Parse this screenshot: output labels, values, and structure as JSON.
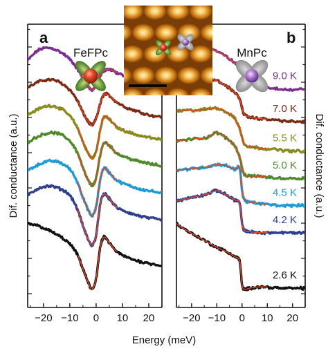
{
  "chart_data": [
    {
      "type": "line",
      "panel_letter": "a",
      "molecule_label": "FeFPc",
      "xlabel": "Energy (meV)",
      "ylabel": "Dif. conductance (a.u.)",
      "y_axis_side": "left",
      "xlim": [
        -26,
        25
      ],
      "x_ticks": [
        -20,
        -10,
        0,
        10,
        20
      ],
      "x_tick_labels": [
        "−20",
        "−10",
        "0",
        "10",
        "20"
      ],
      "y_tick_labels_shown": false,
      "fit_line_color": "#d9482a",
      "fit_x_range": [
        -7,
        8
      ],
      "series": [
        {
          "temperature": "9.0 K",
          "color": "#7b2f8f",
          "x": [
            -26,
            -22,
            -18,
            -14,
            -10,
            -7,
            -5,
            -3,
            -1.5,
            0,
            1.5,
            3,
            5,
            8,
            12,
            16,
            20,
            25
          ],
          "y": [
            7.3,
            7.75,
            7.85,
            7.7,
            7.35,
            6.9,
            6.5,
            6.15,
            6.0,
            6.2,
            6.6,
            6.85,
            6.9,
            6.75,
            6.5,
            6.3,
            6.15,
            6.05
          ]
        },
        {
          "temperature": "7.0 K",
          "color": "#7a2a14",
          "x": [
            -26,
            -22,
            -18,
            -14,
            -10,
            -7,
            -5,
            -3,
            -1.5,
            0,
            1.5,
            3,
            5,
            8,
            12,
            16,
            20,
            25
          ],
          "y": [
            6.1,
            6.35,
            6.45,
            6.35,
            6.0,
            5.5,
            5.0,
            4.6,
            4.45,
            4.75,
            5.35,
            5.8,
            5.75,
            5.45,
            5.2,
            5.05,
            4.9,
            4.8
          ]
        },
        {
          "temperature": "5.5 K",
          "color": "#8a8a1e",
          "x": [
            -26,
            -22,
            -18,
            -14,
            -10,
            -7,
            -5,
            -3,
            -1.5,
            0,
            1.5,
            3,
            5,
            8,
            12,
            16,
            20,
            25
          ],
          "y": [
            4.9,
            5.15,
            5.3,
            5.2,
            4.85,
            4.3,
            3.7,
            3.2,
            3.0,
            3.3,
            4.2,
            4.8,
            4.7,
            4.35,
            4.15,
            4.0,
            3.9,
            3.8
          ]
        },
        {
          "temperature": "5.0 K",
          "color": "#4f8a2a",
          "x": [
            -26,
            -22,
            -18,
            -14,
            -10,
            -7,
            -5,
            -3,
            -1.5,
            0,
            1.5,
            3,
            5,
            8,
            12,
            16,
            20,
            25
          ],
          "y": [
            3.7,
            3.95,
            4.1,
            4.05,
            3.75,
            3.2,
            2.55,
            2.0,
            1.8,
            2.1,
            3.1,
            3.65,
            3.55,
            3.2,
            3.0,
            2.85,
            2.75,
            2.65
          ]
        },
        {
          "temperature": "4.5 K",
          "color": "#1e9ad6",
          "x": [
            -26,
            -22,
            -18,
            -14,
            -10,
            -7,
            -5,
            -3,
            -1.5,
            0,
            1.5,
            3,
            5,
            8,
            12,
            16,
            20,
            25
          ],
          "y": [
            2.45,
            2.7,
            2.85,
            2.8,
            2.5,
            1.9,
            1.25,
            0.7,
            0.45,
            0.85,
            2.0,
            2.55,
            2.35,
            2.0,
            1.8,
            1.65,
            1.55,
            1.45
          ]
        },
        {
          "temperature": "4.2 K",
          "color": "#2f3f8f",
          "x": [
            -26,
            -22,
            -18,
            -14,
            -10,
            -7,
            -5,
            -3,
            -1.5,
            0,
            1.5,
            3,
            5,
            8,
            12,
            16,
            20,
            25
          ],
          "y": [
            1.35,
            1.65,
            1.75,
            1.65,
            1.35,
            0.7,
            0.0,
            -0.6,
            -0.85,
            -0.4,
            0.9,
            1.4,
            1.2,
            0.8,
            0.6,
            0.45,
            0.35,
            0.25
          ]
        },
        {
          "temperature": "2.6 K",
          "color": "#111111",
          "x": [
            -26,
            -22,
            -18,
            -14,
            -10,
            -7,
            -5,
            -3,
            -1.5,
            0,
            1.5,
            3,
            5,
            8,
            12,
            16,
            20,
            25
          ],
          "y": [
            0.1,
            0.0,
            -0.2,
            -0.45,
            -0.8,
            -1.3,
            -1.9,
            -2.5,
            -2.8,
            -2.3,
            -1.0,
            -0.5,
            -0.75,
            -1.15,
            -1.4,
            -1.55,
            -1.65,
            -1.75
          ]
        }
      ]
    },
    {
      "type": "line",
      "panel_letter": "b",
      "molecule_label": "MnPc",
      "xlabel": "Energy (meV)",
      "ylabel": "Dif. conductance (a.u.)",
      "y_axis_side": "right",
      "xlim": [
        -26,
        25
      ],
      "x_ticks": [
        -20,
        -10,
        0,
        10,
        20
      ],
      "x_tick_labels": [
        "−20",
        "−10",
        "0",
        "10",
        "20"
      ],
      "y_tick_labels_shown": false,
      "fit_line_color": "#d9482a",
      "fit_x_range": [
        -26,
        10
      ],
      "series": [
        {
          "temperature": "9.0 K",
          "color": "#7b2f8f",
          "x": [
            -26,
            -22,
            -18,
            -14,
            -10,
            -6,
            -3,
            -1,
            0,
            1,
            3,
            6,
            10,
            15,
            20,
            25
          ],
          "y": [
            7.6,
            7.75,
            7.85,
            7.9,
            7.7,
            7.45,
            7.2,
            7.05,
            6.8,
            6.45,
            6.3,
            6.2,
            6.1,
            6.05,
            6.0,
            6.05
          ]
        },
        {
          "temperature": "7.0 K",
          "color": "#7a2a14",
          "x": [
            -26,
            -22,
            -18,
            -14,
            -10,
            -6,
            -3,
            -1,
            0,
            1,
            3,
            6,
            10,
            15,
            20,
            25
          ],
          "y": [
            6.35,
            6.4,
            6.45,
            6.5,
            6.4,
            6.15,
            5.9,
            5.6,
            5.2,
            4.9,
            4.8,
            4.75,
            4.7,
            4.65,
            4.6,
            4.6
          ]
        },
        {
          "temperature": "5.5 K",
          "color": "#8a8a1e",
          "x": [
            -26,
            -22,
            -18,
            -14,
            -10,
            -6,
            -3,
            -1,
            0,
            1,
            3,
            6,
            10,
            15,
            20,
            25
          ],
          "y": [
            5.05,
            5.1,
            5.1,
            5.15,
            5.2,
            5.0,
            4.75,
            4.3,
            3.9,
            3.6,
            3.5,
            3.45,
            3.4,
            3.35,
            3.3,
            3.3
          ]
        },
        {
          "temperature": "5.0 K",
          "color": "#4f8a2a",
          "x": [
            -26,
            -22,
            -18,
            -14,
            -10,
            -6,
            -3,
            -1,
            0,
            1,
            3,
            6,
            10,
            15,
            20,
            25
          ],
          "y": [
            3.75,
            3.8,
            3.85,
            3.9,
            4.1,
            3.85,
            3.55,
            3.05,
            2.55,
            2.25,
            2.2,
            2.2,
            2.15,
            2.1,
            2.1,
            2.1
          ]
        },
        {
          "temperature": "4.5 K",
          "color": "#1e9ad6",
          "x": [
            -26,
            -22,
            -18,
            -14,
            -10,
            -6,
            -3,
            -1,
            0,
            1,
            3,
            6,
            10,
            15,
            20,
            25
          ],
          "y": [
            2.45,
            2.5,
            2.55,
            2.6,
            2.7,
            2.65,
            2.5,
            2.55,
            1.55,
            1.15,
            1.05,
            1.0,
            0.95,
            0.9,
            0.9,
            0.9
          ]
        },
        {
          "temperature": "4.2 K",
          "color": "#2f3f8f",
          "x": [
            -26,
            -22,
            -18,
            -14,
            -10,
            -6,
            -3,
            -1,
            0,
            1,
            3,
            6,
            10,
            15,
            20,
            25
          ],
          "y": [
            1.1,
            1.2,
            1.3,
            1.4,
            1.55,
            1.35,
            1.15,
            1.0,
            0.1,
            -0.2,
            -0.25,
            -0.3,
            -0.3,
            -0.3,
            -0.3,
            -0.3
          ]
        },
        {
          "temperature": "2.6 K",
          "color": "#111111",
          "x": [
            -26,
            -22,
            -18,
            -14,
            -10,
            -6,
            -3,
            -1,
            0,
            1,
            3,
            6,
            10,
            15,
            20,
            25
          ],
          "y": [
            0.1,
            -0.2,
            -0.45,
            -0.7,
            -0.95,
            -1.15,
            -1.35,
            -1.55,
            -2.6,
            -2.8,
            -2.75,
            -2.7,
            -2.7,
            -2.75,
            -2.75,
            -2.75
          ]
        }
      ]
    }
  ],
  "inset_image": {
    "description_role": "stm-topography-inset",
    "colors": {
      "dark": "#5a2e05",
      "mid": "#c9700e",
      "bright": "#ffe4a0"
    }
  }
}
